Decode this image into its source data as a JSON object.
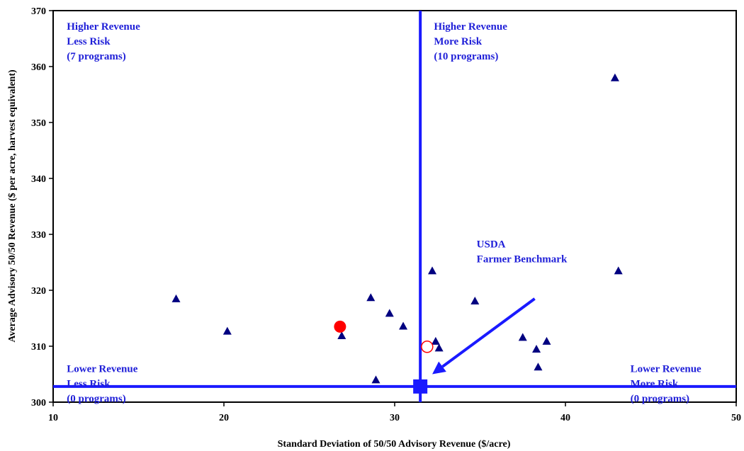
{
  "chart_data": {
    "type": "scatter",
    "xlabel": "Standard Deviation of 50/50 Advisory Revenue ($/acre)",
    "ylabel": "Average Advisory 50/50 Revenue ($ per acre, harvest equivalent)",
    "xlim": [
      10,
      50
    ],
    "ylim": [
      300,
      370
    ],
    "x_ticks": [
      "10",
      "20",
      "30",
      "40",
      "50"
    ],
    "y_ticks": [
      "300",
      "310",
      "320",
      "330",
      "340",
      "350",
      "360",
      "370"
    ],
    "grid": false,
    "colors": {
      "programs": "#000080",
      "benchmark": "#1a1aff",
      "filled_circle": "#ff0000",
      "open_circle": "#ff0000",
      "quadrant_text": "#1f1fd8"
    },
    "series": [
      {
        "marker": "triangle",
        "points": [
          [
            17.2,
            318.5
          ],
          [
            20.2,
            312.7
          ],
          [
            26.9,
            311.9
          ],
          [
            28.6,
            318.7
          ],
          [
            28.9,
            304.0
          ],
          [
            29.7,
            315.9
          ],
          [
            30.5,
            313.6
          ],
          [
            32.2,
            323.5
          ],
          [
            32.4,
            310.9
          ],
          [
            32.6,
            309.7
          ],
          [
            34.7,
            318.1
          ],
          [
            37.5,
            311.6
          ],
          [
            38.3,
            309.5
          ],
          [
            38.4,
            306.3
          ],
          [
            38.9,
            310.9
          ],
          [
            42.9,
            358.0
          ],
          [
            43.1,
            323.5
          ]
        ]
      },
      {
        "marker": "filled-circle",
        "points": [
          [
            26.8,
            313.5
          ]
        ]
      },
      {
        "marker": "open-circle",
        "points": [
          [
            31.9,
            309.9
          ]
        ]
      },
      {
        "marker": "square",
        "points": [
          [
            31.5,
            302.8
          ]
        ]
      }
    ],
    "reference_lines": {
      "x": 31.5,
      "y": 302.8
    },
    "arrow": {
      "from": [
        38.2,
        318.5
      ],
      "to": [
        32.2,
        305.0
      ]
    },
    "annotations": [
      {
        "id": "hr-lr",
        "lines": [
          "Higher Revenue",
          "Less Risk",
          "(7 programs)"
        ],
        "x": 10.8,
        "y": 368.2
      },
      {
        "id": "hr-mr",
        "lines": [
          "Higher Revenue",
          "More Risk",
          "(10 programs)"
        ],
        "x": 32.3,
        "y": 368.2
      },
      {
        "id": "lr-lr",
        "lines": [
          "Lower Revenue",
          "Less Risk",
          "(0 programs)"
        ],
        "x": 10.8,
        "y": 307.0
      },
      {
        "id": "lr-mr",
        "lines": [
          "Lower Revenue",
          "More Risk",
          "(0 programs)"
        ],
        "x": 43.8,
        "y": 307.0
      },
      {
        "id": "usda",
        "lines": [
          "USDA",
          "Farmer Benchmark"
        ],
        "x": 34.8,
        "y": 329.3
      }
    ]
  }
}
